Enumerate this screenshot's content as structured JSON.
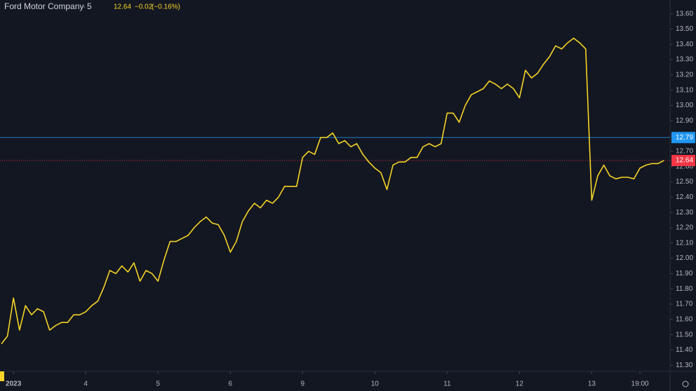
{
  "chart_data": {
    "type": "line",
    "title": "Ford Motor Company",
    "interval": "5",
    "last": "12.64",
    "change": "−0.02",
    "change_pct": "(−0.16%)",
    "color": "#f5d327",
    "values": [
      11.44,
      11.49,
      11.74,
      11.53,
      11.69,
      11.63,
      11.67,
      11.65,
      11.53,
      11.56,
      11.58,
      11.58,
      11.63,
      11.63,
      11.65,
      11.69,
      11.72,
      11.81,
      11.92,
      11.9,
      11.95,
      11.91,
      11.97,
      11.85,
      11.92,
      11.9,
      11.85,
      11.99,
      12.11,
      12.11,
      12.13,
      12.15,
      12.2,
      12.24,
      12.27,
      12.23,
      12.22,
      12.15,
      12.04,
      12.11,
      12.24,
      12.31,
      12.36,
      12.33,
      12.38,
      12.36,
      12.4,
      12.47,
      12.47,
      12.47,
      12.66,
      12.7,
      12.68,
      12.79,
      12.79,
      12.82,
      12.75,
      12.77,
      12.73,
      12.75,
      12.68,
      12.63,
      12.59,
      12.56,
      12.45,
      12.61,
      12.63,
      12.63,
      12.66,
      12.66,
      12.73,
      12.75,
      12.73,
      12.75,
      12.95,
      12.95,
      12.89,
      13.0,
      13.07,
      13.09,
      13.11,
      13.16,
      13.14,
      13.11,
      13.14,
      13.11,
      13.05,
      13.23,
      13.18,
      13.21,
      13.27,
      13.32,
      13.39,
      13.37,
      13.41,
      13.44,
      13.41,
      13.37,
      12.38,
      12.54,
      12.61,
      12.54,
      12.52,
      12.53,
      12.53,
      12.52,
      12.59,
      12.61,
      12.62,
      12.62,
      12.64
    ],
    "xlim": [
      0,
      111
    ],
    "xticks": [
      {
        "value": 2,
        "label": "2023"
      },
      {
        "value": 14,
        "label": "4"
      },
      {
        "value": 26,
        "label": "5"
      },
      {
        "value": 38,
        "label": "6"
      },
      {
        "value": 50,
        "label": "9"
      },
      {
        "value": 62,
        "label": "10"
      },
      {
        "value": 74,
        "label": "11"
      },
      {
        "value": 86,
        "label": "12"
      },
      {
        "value": 98,
        "label": "13"
      },
      {
        "value": 106,
        "label": "19:00"
      }
    ],
    "ylim": [
      11.26,
      13.69
    ],
    "yticks": [
      {
        "value": 11.3,
        "label": "11.30"
      },
      {
        "value": 11.4,
        "label": "11.40"
      },
      {
        "value": 11.5,
        "label": "11.50"
      },
      {
        "value": 11.6,
        "label": "11.60"
      },
      {
        "value": 11.7,
        "label": "11.70"
      },
      {
        "value": 11.8,
        "label": "11.80"
      },
      {
        "value": 11.9,
        "label": "11.90"
      },
      {
        "value": 12.0,
        "label": "12.00"
      },
      {
        "value": 12.1,
        "label": "12.10"
      },
      {
        "value": 12.2,
        "label": "12.20"
      },
      {
        "value": 12.3,
        "label": "12.30"
      },
      {
        "value": 12.4,
        "label": "12.40"
      },
      {
        "value": 12.5,
        "label": "12.50"
      },
      {
        "value": 12.6,
        "label": "12.60"
      },
      {
        "value": 12.7,
        "label": "12.70"
      },
      {
        "value": 12.8,
        "label": "12.80"
      },
      {
        "value": 12.9,
        "label": "12.90"
      },
      {
        "value": 13.0,
        "label": "13.00"
      },
      {
        "value": 13.1,
        "label": "13.10"
      },
      {
        "value": 13.2,
        "label": "13.20"
      },
      {
        "value": 13.3,
        "label": "13.30"
      },
      {
        "value": 13.4,
        "label": "13.40"
      },
      {
        "value": 13.5,
        "label": "13.50"
      },
      {
        "value": 13.6,
        "label": "13.60"
      }
    ],
    "price_lines": [
      {
        "value": 12.79,
        "color": "#2196f3"
      },
      {
        "value": 12.64,
        "color": "#f23645"
      }
    ]
  }
}
